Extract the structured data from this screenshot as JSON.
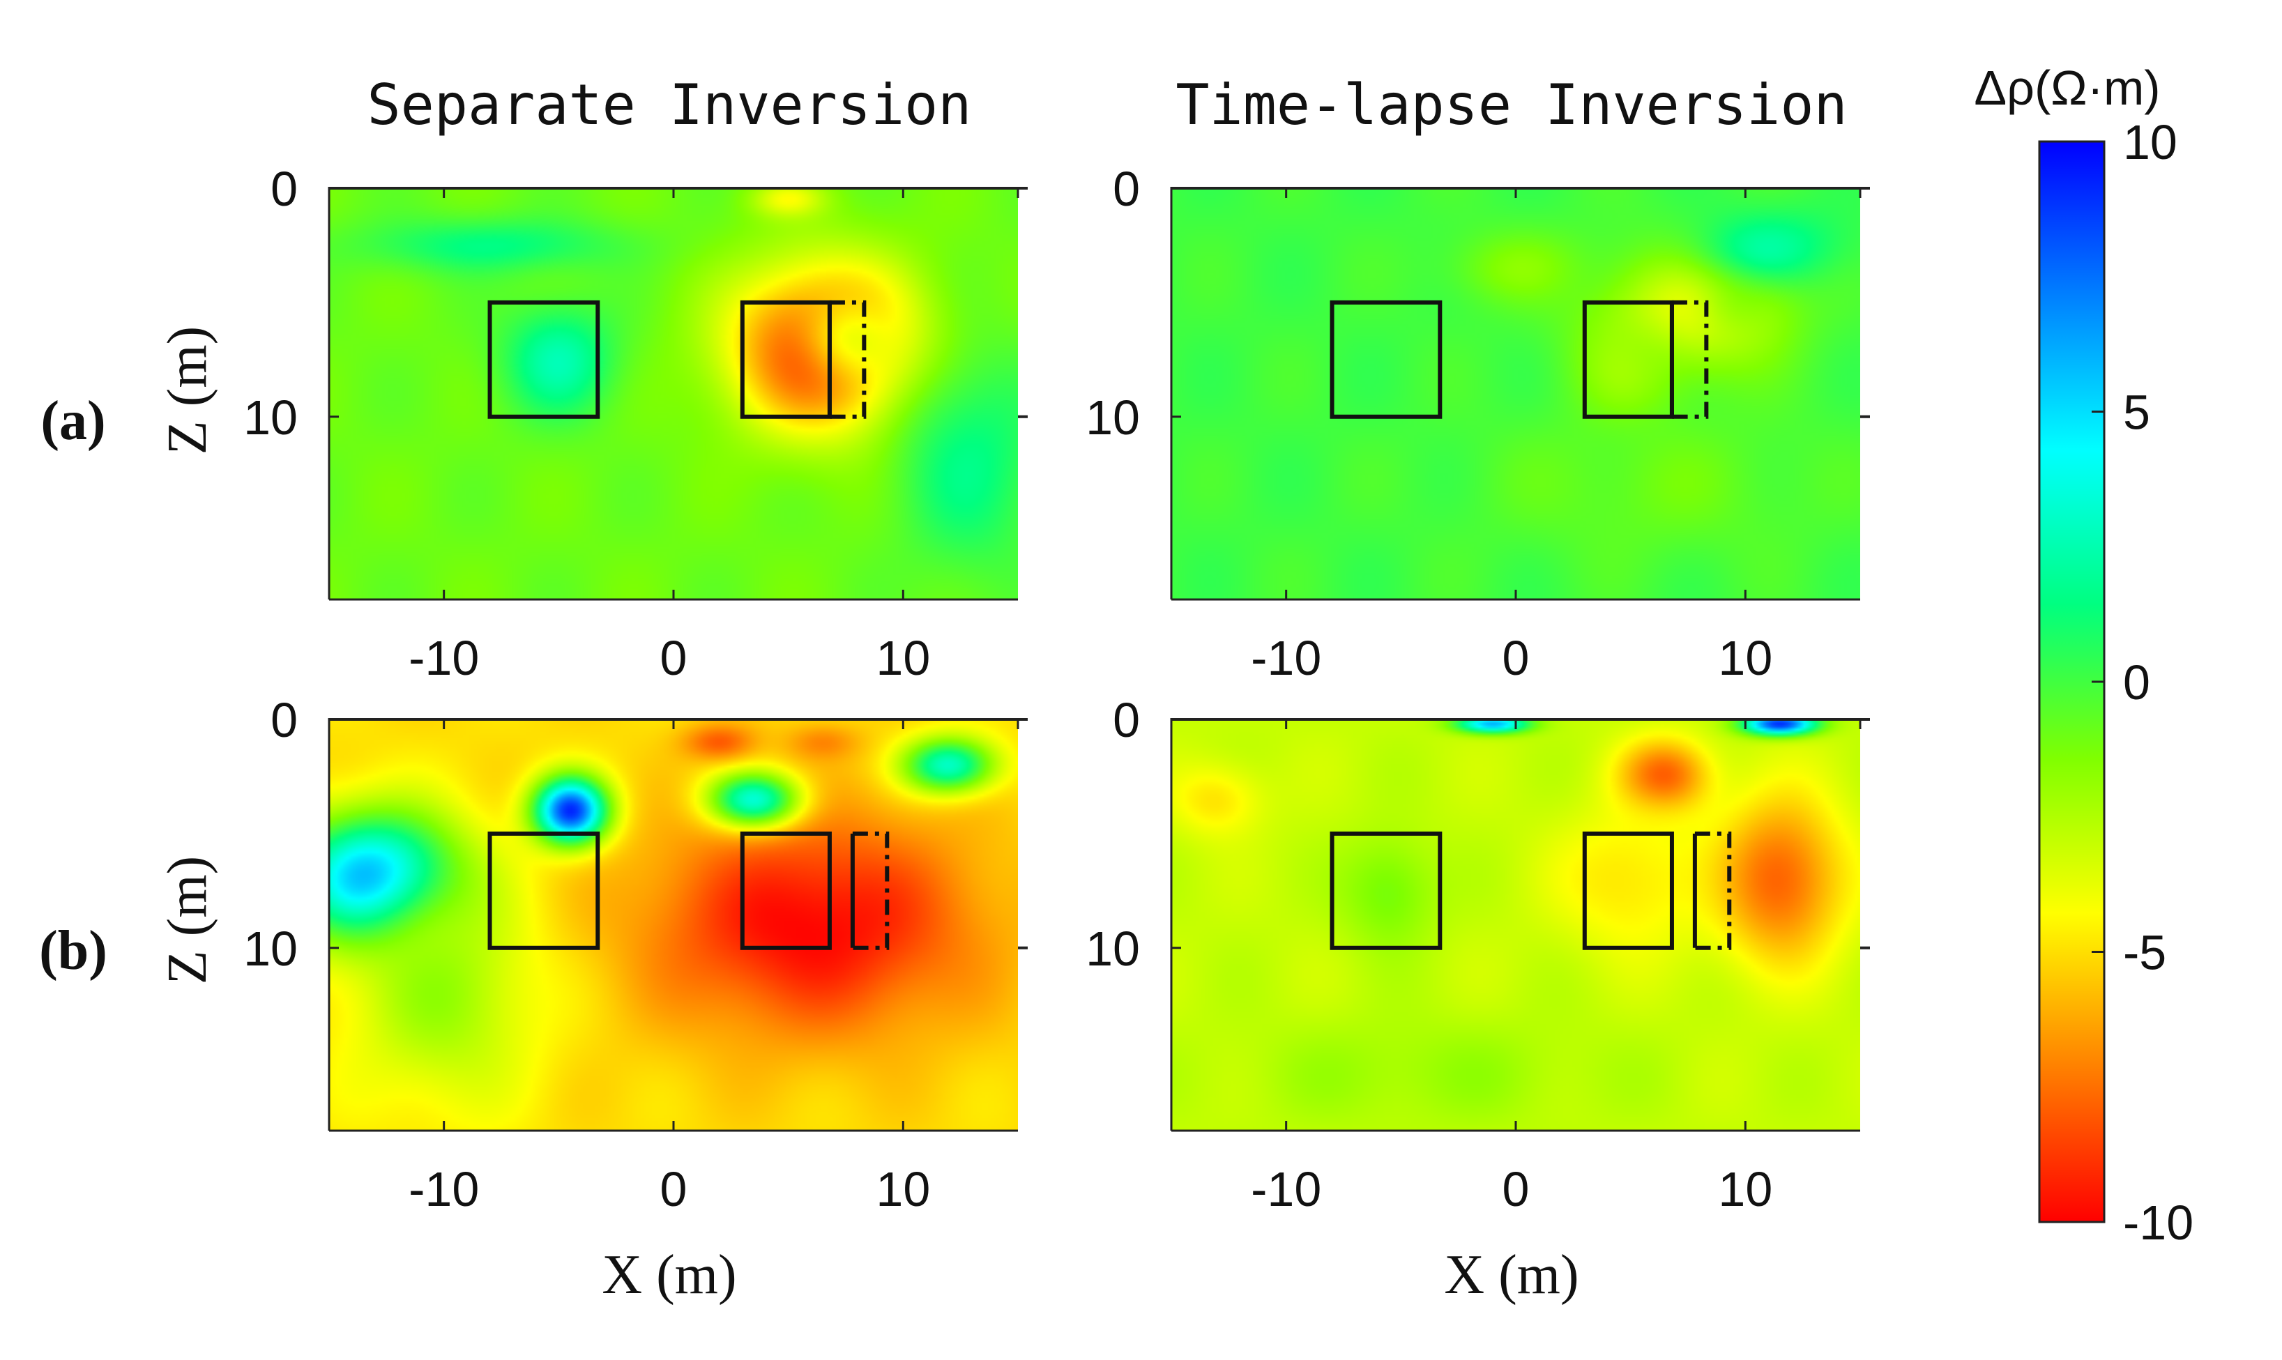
{
  "chart_data": {
    "type": "heatmap",
    "column_titles": [
      "Separate Inversion",
      "Time-lapse Inversion"
    ],
    "row_labels": [
      "(a)",
      "(b)"
    ],
    "xlabel": "X (m)",
    "ylabel": "Z (m)",
    "xlim": [
      -15,
      15
    ],
    "ylim": [
      0,
      18
    ],
    "x_ticks": [
      -10,
      0,
      10
    ],
    "x_tick_labels": [
      "-10",
      "0",
      "10"
    ],
    "y_ticks": [
      0,
      10
    ],
    "y_tick_labels": [
      "0",
      "10"
    ],
    "colorbar": {
      "label": "Δρ(Ω·m)",
      "range": [
        -10,
        10
      ],
      "ticks": [
        10,
        5,
        0,
        -5,
        -10
      ],
      "tick_labels": [
        "10",
        "5",
        "0",
        "-5",
        "-10"
      ],
      "colormap": [
        "#ff0000",
        "#ff8000",
        "#ffff00",
        "#80ff00",
        "#00ff80",
        "#00ffff",
        "#0080ff",
        "#0000ff"
      ]
    },
    "target_boxes": [
      {
        "x0": -8,
        "x1": -3.3,
        "z0": 5,
        "z1": 10,
        "style": "solid"
      },
      {
        "x0": 3,
        "x1": 6.8,
        "z0": 5,
        "z1": 10,
        "style": "solid"
      }
    ],
    "panels": [
      {
        "row": "(a)",
        "column": "Separate Inversion",
        "background": -1,
        "shifted_box": {
          "x0": 6.8,
          "x1": 8.3
        },
        "anomalies": [
          {
            "x": 6.5,
            "z": 7.0,
            "rx": 5.0,
            "rz": 4.5,
            "value": -10
          },
          {
            "x": 8.0,
            "z": 6.5,
            "rx": 3.5,
            "rz": 3.0,
            "value": -4
          },
          {
            "x": -5.0,
            "z": 7.5,
            "rx": 3.0,
            "rz": 3.0,
            "value": 2.5
          },
          {
            "x": -8.0,
            "z": 2.5,
            "rx": 7.0,
            "rz": 1.5,
            "value": 1.5
          },
          {
            "x": 13.0,
            "z": 12.0,
            "rx": 4.0,
            "rz": 6.0,
            "value": 1.5
          },
          {
            "x": 5.0,
            "z": 0.5,
            "rx": 2.0,
            "rz": 1.0,
            "value": -4
          }
        ]
      },
      {
        "row": "(a)",
        "column": "Time-lapse Inversion",
        "background": 0,
        "shifted_box": {
          "x0": 6.8,
          "x1": 8.3
        },
        "anomalies": [
          {
            "x": 7.5,
            "z": 5.5,
            "rx": 5.0,
            "rz": 3.5,
            "value": -4
          },
          {
            "x": 10.0,
            "z": 5.0,
            "rx": 2.5,
            "rz": 2.0,
            "value": -2
          },
          {
            "x": 5.0,
            "z": 8.0,
            "rx": 3.0,
            "rz": 3.0,
            "value": -2
          },
          {
            "x": 11.0,
            "z": 2.5,
            "rx": 4.0,
            "rz": 2.0,
            "value": 2
          },
          {
            "x": 0.0,
            "z": 3.5,
            "rx": 4.0,
            "rz": 2.0,
            "value": -1.5
          },
          {
            "x": 6.0,
            "z": 13.0,
            "rx": 9.0,
            "rz": 4.0,
            "value": -1
          }
        ]
      },
      {
        "row": "(b)",
        "column": "Separate Inversion",
        "background": -5,
        "shifted_box": {
          "x0": 7.8,
          "x1": 9.3
        },
        "anomalies": [
          {
            "x": 6.0,
            "z": 9.0,
            "rx": 9.0,
            "rz": 6.0,
            "value": -10
          },
          {
            "x": -13.0,
            "z": 7.0,
            "rx": 4.5,
            "rz": 3.5,
            "value": 7
          },
          {
            "x": -4.5,
            "z": 4.0,
            "rx": 2.0,
            "rz": 1.8,
            "value": 9
          },
          {
            "x": -10.0,
            "z": 12.0,
            "rx": 5.0,
            "rz": 6.0,
            "value": -2
          },
          {
            "x": 3.5,
            "z": 3.5,
            "rx": 2.5,
            "rz": 1.5,
            "value": 3
          },
          {
            "x": 12.0,
            "z": 2.0,
            "rx": 2.5,
            "rz": 1.5,
            "value": 3
          },
          {
            "x": 2.0,
            "z": 1.0,
            "rx": 2.0,
            "rz": 1.0,
            "value": -8
          },
          {
            "x": 6.5,
            "z": 1.0,
            "rx": 2.0,
            "rz": 1.0,
            "value": -7
          }
        ]
      },
      {
        "row": "(b)",
        "column": "Time-lapse Inversion",
        "background": -3,
        "shifted_box": {
          "x0": 7.8,
          "x1": 9.3
        },
        "anomalies": [
          {
            "x": 11.5,
            "z": 7.0,
            "rx": 3.5,
            "rz": 4.5,
            "value": -8
          },
          {
            "x": 6.5,
            "z": 2.5,
            "rx": 2.5,
            "rz": 2.0,
            "value": -8
          },
          {
            "x": 5.0,
            "z": 7.0,
            "rx": 4.0,
            "rz": 4.0,
            "value": -5
          },
          {
            "x": -5.5,
            "z": 7.5,
            "rx": 2.5,
            "rz": 3.0,
            "value": -1
          },
          {
            "x": -13.0,
            "z": 3.5,
            "rx": 2.5,
            "rz": 2.0,
            "value": -5
          },
          {
            "x": -4.0,
            "z": 15.5,
            "rx": 10.0,
            "rz": 3.0,
            "value": -2
          },
          {
            "x": 11.5,
            "z": 0.2,
            "rx": 2.0,
            "rz": 0.6,
            "value": 9
          },
          {
            "x": -1.0,
            "z": 0.2,
            "rx": 2.0,
            "rz": 0.5,
            "value": 6
          }
        ]
      }
    ]
  }
}
